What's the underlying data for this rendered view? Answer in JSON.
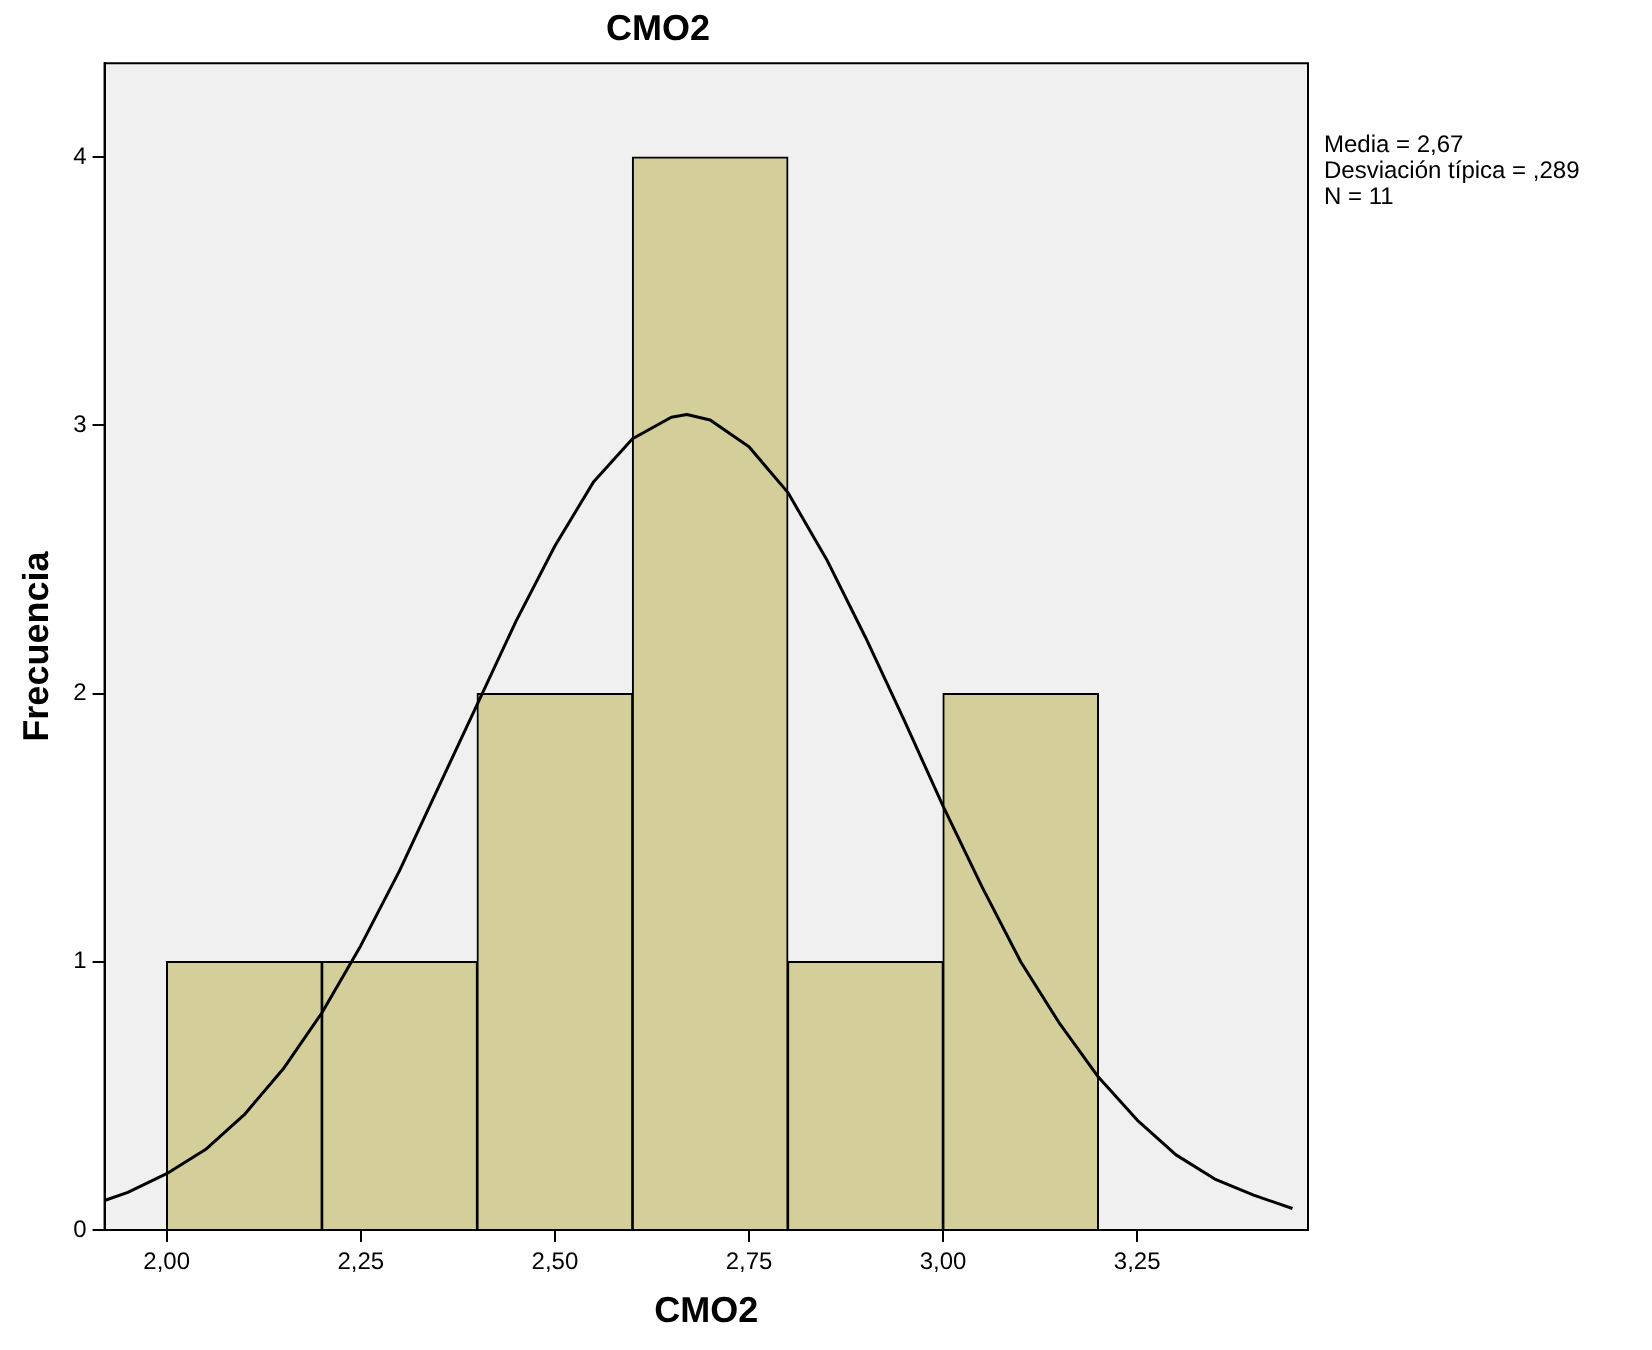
{
  "chart_data": {
    "type": "histogram",
    "title": "CMO2",
    "xlabel": "CMO2",
    "ylabel": "Frecuencia",
    "annotations": [
      "Media = 2,67",
      "Desviación típica = ,289",
      "N = 11"
    ],
    "series": [
      {
        "type": "histogram",
        "color": "#d3ce9a",
        "bins": [
          2.0,
          2.2,
          2.4,
          2.6,
          2.8,
          3.0,
          3.2
        ],
        "values": [
          1,
          1,
          2,
          4,
          1,
          2
        ]
      },
      {
        "type": "line",
        "color": "#000000",
        "x": [
          1.92,
          1.95,
          2.0,
          2.05,
          2.1,
          2.15,
          2.2,
          2.25,
          2.3,
          2.35,
          2.4,
          2.45,
          2.5,
          2.55,
          2.6,
          2.65,
          2.67,
          2.7,
          2.75,
          2.8,
          2.85,
          2.9,
          2.95,
          3.0,
          3.05,
          3.1,
          3.15,
          3.2,
          3.25,
          3.3,
          3.35,
          3.4,
          3.45
        ],
        "values": [
          0.11,
          0.14,
          0.21,
          0.3,
          0.43,
          0.6,
          0.81,
          1.06,
          1.34,
          1.65,
          1.96,
          2.27,
          2.55,
          2.79,
          2.95,
          3.03,
          3.04,
          3.02,
          2.92,
          2.75,
          2.5,
          2.21,
          1.9,
          1.58,
          1.28,
          1.0,
          0.77,
          0.57,
          0.41,
          0.28,
          0.19,
          0.13,
          0.08
        ]
      }
    ],
    "xlim": [
      1.92,
      3.47
    ],
    "ylim": [
      0,
      4.35
    ],
    "xticks": [
      {
        "value": 2,
        "label": "2,00"
      },
      {
        "value": 2.25,
        "label": "2,25"
      },
      {
        "value": 2.5,
        "label": "2,50"
      },
      {
        "value": 2.75,
        "label": "2,75"
      },
      {
        "value": 3,
        "label": "3,00"
      },
      {
        "value": 3.25,
        "label": "3,25"
      }
    ],
    "yticks": [
      0,
      1,
      2,
      3,
      4
    ],
    "grid": false,
    "legend": false,
    "marker": "none",
    "line_style": "solid"
  }
}
